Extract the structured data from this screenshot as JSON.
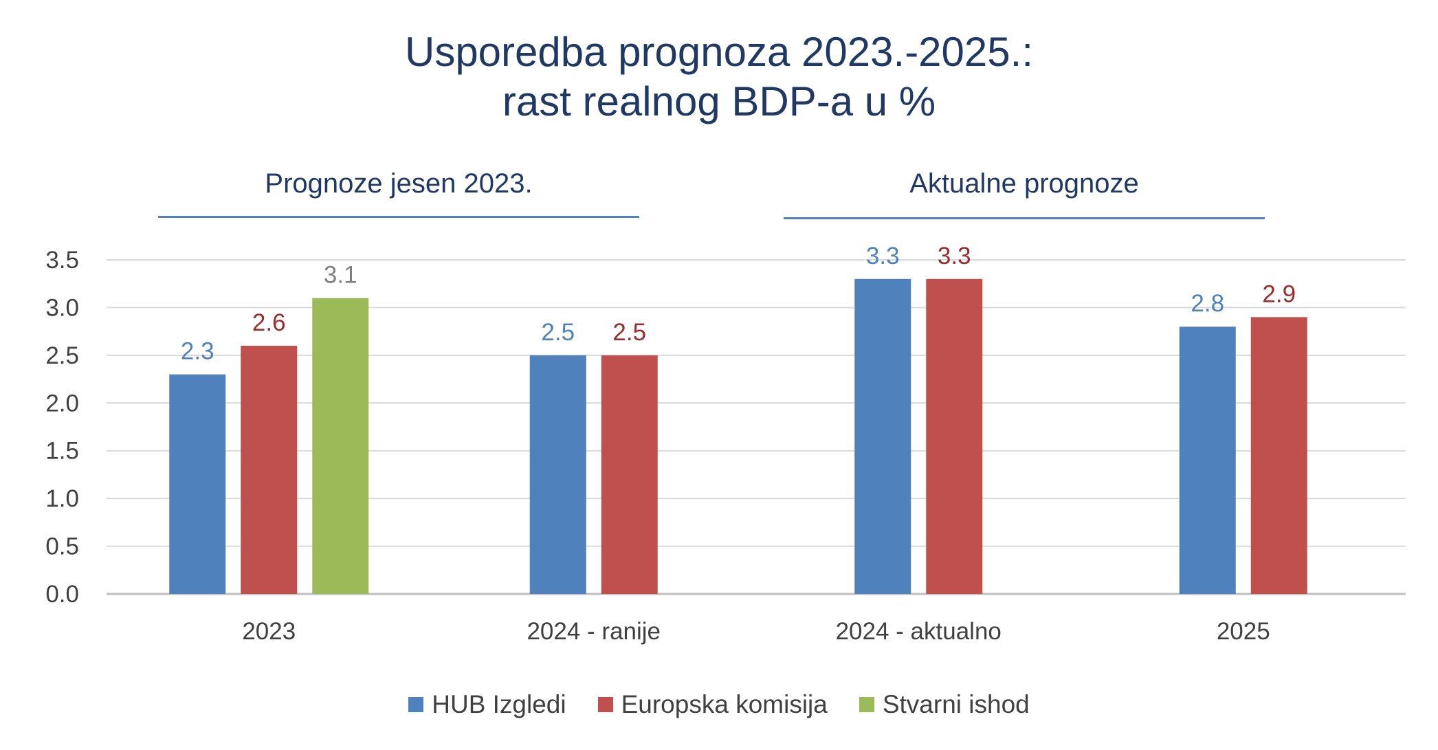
{
  "chart_data": {
    "type": "bar",
    "title": [
      "Usporedba prognoza 2023.-2025.:",
      "rast realnog BDP-a u %"
    ],
    "xlabel": "",
    "ylabel": "",
    "categories": [
      "2023",
      "2024 - ranije",
      "2024 - aktualno",
      "2025"
    ],
    "groups": [
      {
        "label": "Prognoze jesen 2023.",
        "categories": [
          "2023",
          "2024 - ranije"
        ]
      },
      {
        "label": "Aktualne prognoze",
        "categories": [
          "2024 - aktualno",
          "2025"
        ]
      }
    ],
    "series": [
      {
        "name": "HUB Izgledi",
        "color": "#4f81bd",
        "label_color": "#4f81bd",
        "values": [
          2.3,
          2.5,
          3.3,
          2.8
        ]
      },
      {
        "name": "Europska komisija",
        "color": "#c0504d",
        "label_color": "#9b2c2c",
        "values": [
          2.6,
          2.5,
          3.3,
          2.9
        ]
      },
      {
        "name": "Stvarni ishod",
        "color": "#9bbb59",
        "label_color": "#7f7f7f",
        "values": [
          3.1,
          null,
          null,
          null
        ]
      }
    ],
    "ylim": [
      0,
      3.5
    ],
    "yticks": [
      "0.0",
      "0.5",
      "1.0",
      "1.5",
      "2.0",
      "2.5",
      "3.0",
      "3.5"
    ],
    "grid": true,
    "legend_position": "bottom",
    "data_labels": true
  }
}
